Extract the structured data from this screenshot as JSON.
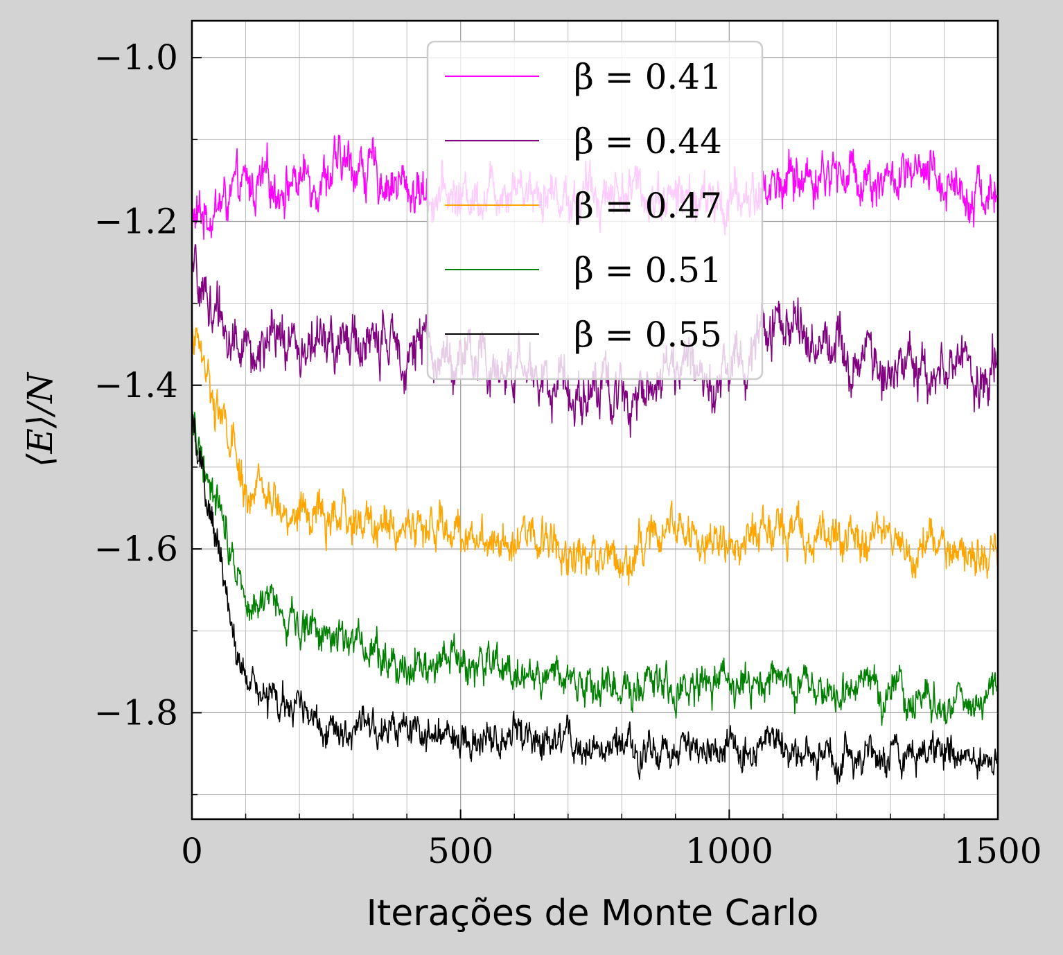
{
  "chart_data": {
    "type": "line",
    "xlabel": "Iterações de Monte Carlo",
    "ylabel": "⟨E⟩/N",
    "xlim": [
      0,
      1500
    ],
    "ylim": [
      -1.93,
      -0.955
    ],
    "xticks": [
      0,
      500,
      1000,
      1500
    ],
    "xtick_labels": [
      "0",
      "500",
      "1000",
      "1500"
    ],
    "yticks": [
      -1.8,
      -1.6,
      -1.4,
      -1.2,
      -1.0
    ],
    "ytick_labels": [
      "−1.8",
      "−1.6",
      "−1.4",
      "−1.2",
      "−1.0"
    ],
    "grid": true,
    "legend_position": "upper center",
    "series": [
      {
        "name": "β = 0.41",
        "color": "#ff00ff",
        "start": -1.2,
        "tau": 8,
        "equilibrium": -1.16,
        "noise": 0.025,
        "x": [
          0,
          100,
          200,
          300,
          400,
          500,
          600,
          700,
          800,
          900,
          1000,
          1100,
          1200,
          1300,
          1400,
          1500
        ],
        "y": [
          -1.2,
          -1.16,
          -1.15,
          -1.13,
          -1.16,
          -1.17,
          -1.15,
          -1.17,
          -1.16,
          -1.17,
          -1.18,
          -1.15,
          -1.14,
          -1.15,
          -1.15,
          -1.17
        ]
      },
      {
        "name": "β = 0.44",
        "color": "#800080",
        "start": -1.27,
        "tau": 10,
        "equilibrium": -1.37,
        "noise": 0.028,
        "x": [
          0,
          100,
          200,
          300,
          400,
          500,
          600,
          700,
          800,
          900,
          1000,
          1100,
          1200,
          1300,
          1400,
          1500
        ],
        "y": [
          -1.27,
          -1.36,
          -1.35,
          -1.35,
          -1.35,
          -1.37,
          -1.38,
          -1.4,
          -1.41,
          -1.38,
          -1.38,
          -1.32,
          -1.35,
          -1.38,
          -1.38,
          -1.38
        ]
      },
      {
        "name": "β = 0.47",
        "color": "#ffa500",
        "start": -1.33,
        "tau": 35,
        "equilibrium": -1.58,
        "noise": 0.022,
        "x": [
          0,
          100,
          200,
          300,
          400,
          500,
          600,
          700,
          800,
          900,
          1000,
          1100,
          1200,
          1300,
          1400,
          1500
        ],
        "y": [
          -1.33,
          -1.53,
          -1.56,
          -1.57,
          -1.57,
          -1.58,
          -1.58,
          -1.6,
          -1.61,
          -1.57,
          -1.6,
          -1.57,
          -1.58,
          -1.59,
          -1.6,
          -1.61
        ]
      },
      {
        "name": "β = 0.51",
        "color": "#008000",
        "start": -1.44,
        "tau": 130,
        "equilibrium": -1.775,
        "noise": 0.02,
        "x": [
          0,
          100,
          200,
          300,
          400,
          500,
          600,
          700,
          800,
          900,
          1000,
          1100,
          1200,
          1300,
          1400,
          1500
        ],
        "y": [
          -1.44,
          -1.65,
          -1.69,
          -1.71,
          -1.74,
          -1.74,
          -1.75,
          -1.76,
          -1.77,
          -1.77,
          -1.77,
          -1.77,
          -1.78,
          -1.78,
          -1.78,
          -1.78
        ]
      },
      {
        "name": "β = 0.55",
        "color": "#000000",
        "start": -1.45,
        "tau": 95,
        "equilibrium": -1.845,
        "noise": 0.018,
        "x": [
          0,
          100,
          200,
          300,
          400,
          500,
          600,
          700,
          800,
          900,
          1000,
          1100,
          1200,
          1300,
          1400,
          1500
        ],
        "y": [
          -1.45,
          -1.77,
          -1.8,
          -1.82,
          -1.83,
          -1.83,
          -1.83,
          -1.84,
          -1.85,
          -1.85,
          -1.85,
          -1.84,
          -1.85,
          -1.85,
          -1.85,
          -1.86
        ]
      }
    ]
  }
}
